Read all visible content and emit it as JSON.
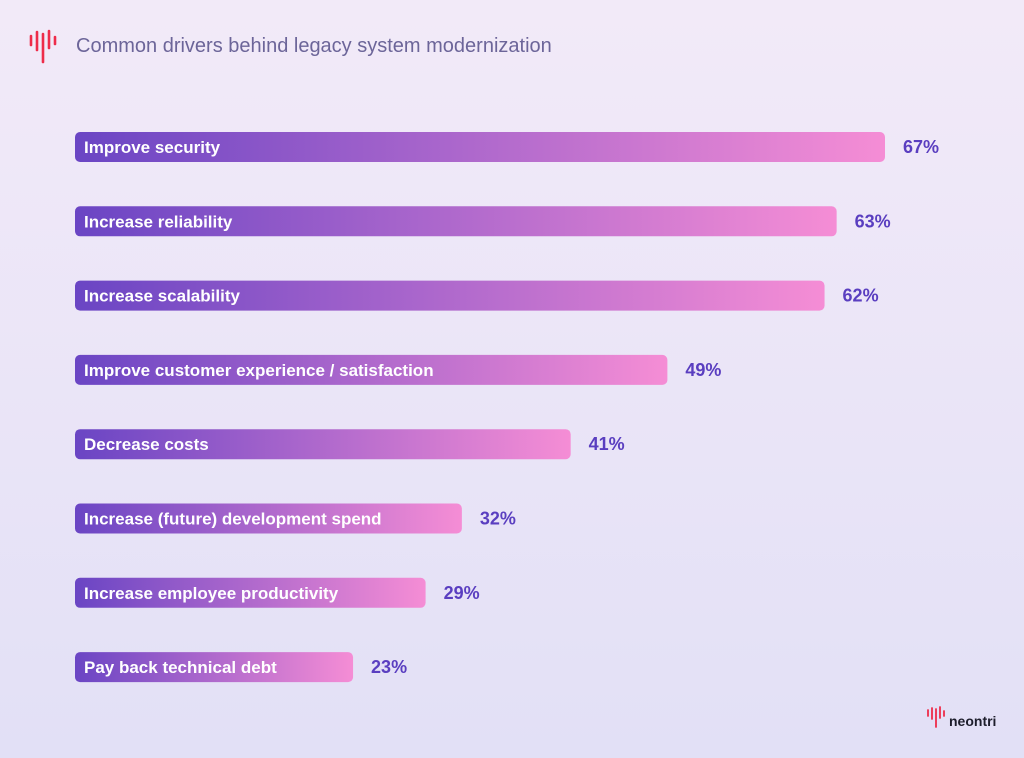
{
  "title": "Common drivers behind legacy system modernization",
  "brand": "neontri",
  "colors": {
    "bar_start": "#6a45c4",
    "bar_end": "#f58dd5",
    "value_label": "#5a3ec0",
    "logo": "#ee2c4a",
    "title": "#6c6599"
  },
  "chart_data": {
    "type": "bar",
    "orientation": "horizontal",
    "title": "Common drivers behind legacy system modernization",
    "categories": [
      "Improve security",
      "Increase reliability",
      "Increase scalability",
      "Improve customer experience / satisfaction",
      "Decrease costs",
      "Increase (future) development spend",
      "Increase employee productivity",
      "Pay back technical debt"
    ],
    "values": [
      67,
      63,
      62,
      49,
      41,
      32,
      29,
      23
    ],
    "value_labels": [
      "67%",
      "63%",
      "62%",
      "49%",
      "41%",
      "32%",
      "29%",
      "23%"
    ],
    "unit": "%",
    "grid": false,
    "legend": "none"
  }
}
